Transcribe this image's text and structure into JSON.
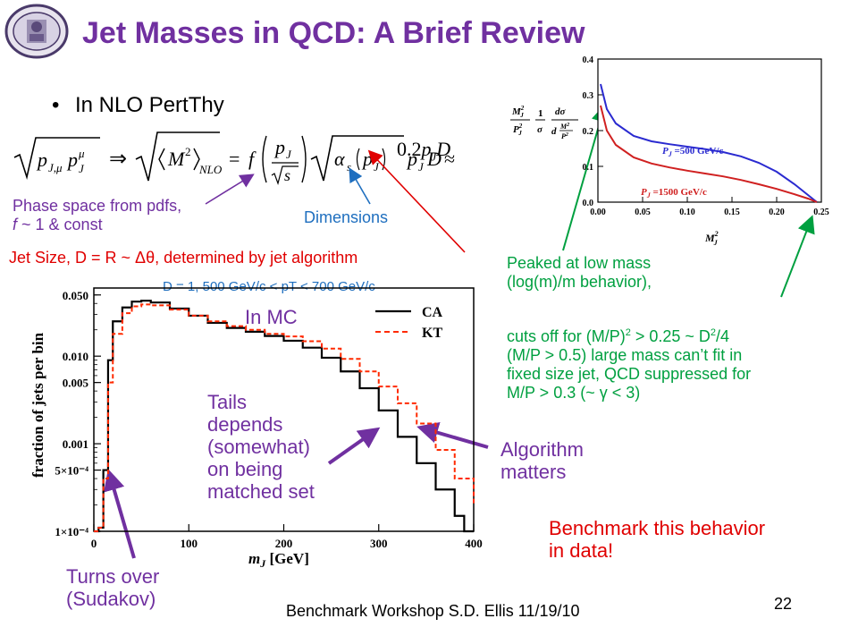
{
  "title": "Jet Masses in QCD:  A Brief Review",
  "bullet": "In NLO PertThy",
  "equation": {
    "lhs": "p",
    "lhs_sub": "J,μ",
    "lhs2": "p",
    "lhs2_sup": "μ",
    "lhs2_sub": "J",
    "implies": "⇒",
    "mass_term": "M",
    "mass_sup": "2",
    "mass_sub": "NLO",
    "eq": "=",
    "f": "f",
    "frac_num": "p",
    "frac_num_sub": "J",
    "frac_den": "s",
    "alpha": "α",
    "alpha_sub": "s",
    "arg": "p",
    "arg_sub": "J",
    "tail": "p",
    "tail_sub": "J",
    "D": "D",
    "approx": "≈",
    "coef": "0.2",
    "p2": "p",
    "p2_sub": "J",
    "D2": "D"
  },
  "annotations": {
    "phase_space_1": "Phase space from pdfs,",
    "phase_space_2": "f ~ 1 & const",
    "dimensions": "Dimensions",
    "jet_size": "Jet Size, D = R ~ Δθ, determined by jet algorithm",
    "selection": "D = 1, 500 GeV/c < pT < 700 GeV/c",
    "in_mc": "In MC",
    "tails_1": "Tails",
    "tails_2": "depends",
    "tails_3": "(somewhat)",
    "tails_4": "on being",
    "tails_5": "matched set",
    "algorithm_1": "Algorithm",
    "algorithm_2": "matters",
    "turns_1": "Turns over",
    "turns_2": "(Sudakov)",
    "benchmark_1": "Benchmark this behavior",
    "benchmark_2": "in data!",
    "peaked_1": "Peaked at low mass",
    "peaked_2": "(log(m)/m behavior),",
    "cuts_1": "cuts off for (M/P)",
    "cuts_1_sup": "2",
    "cuts_1_b": " > 0.25 ~ D",
    "cuts_1_sup2": "2",
    "cuts_1_c": "/4",
    "cuts_2": "(M/P > 0.5) large mass can’t fit in",
    "cuts_3": "fixed size jet, QCD suppressed for",
    "cuts_4": "M/P > 0.3 (~  γ < 3)"
  },
  "footer": "Benchmark Workshop    S.D. Ellis  11/19/10",
  "page_number": "22",
  "colors": {
    "title": "#7030a0",
    "blue_arrow": "#1f6fbf",
    "red_text": "#e00000",
    "green_text": "#00a040",
    "curve_500": "#2a2ad0",
    "curve_1500": "#d02020"
  },
  "chart_data": [
    {
      "type": "line",
      "xlabel": "m_J [GeV]",
      "ylabel": "fraction of jets per bin",
      "xlim": [
        0,
        400
      ],
      "ylim": [
        0.0001,
        0.06
      ],
      "yscale": "log",
      "x_ticks": [
        "0",
        "100",
        "200",
        "300",
        "400"
      ],
      "y_ticks": [
        "0.050",
        "0.010",
        "0.005",
        "0.001",
        "5×10⁻⁴",
        "1×10⁻⁴"
      ],
      "legend_position": "top-right",
      "series": [
        {
          "name": "CA",
          "style": "solid-black",
          "x": [
            0,
            5,
            10,
            15,
            20,
            30,
            40,
            50,
            60,
            80,
            100,
            120,
            140,
            160,
            180,
            200,
            220,
            240,
            260,
            280,
            300,
            320,
            340,
            360,
            380,
            390,
            400
          ],
          "y": [
            0.0001,
            0.00011,
            0.0005,
            0.009,
            0.025,
            0.036,
            0.042,
            0.043,
            0.041,
            0.035,
            0.029,
            0.024,
            0.021,
            0.019,
            0.017,
            0.015,
            0.0125,
            0.0096,
            0.0067,
            0.0043,
            0.0024,
            0.0012,
            0.0006,
            0.0003,
            0.00015,
            0.0001,
            0.0001
          ]
        },
        {
          "name": "KT",
          "style": "dashed-red",
          "x": [
            0,
            5,
            10,
            15,
            20,
            30,
            40,
            50,
            60,
            80,
            100,
            120,
            140,
            160,
            180,
            200,
            220,
            240,
            260,
            280,
            300,
            320,
            340,
            360,
            380,
            400
          ],
          "y": [
            0.0001,
            0.00011,
            0.0004,
            0.005,
            0.018,
            0.031,
            0.037,
            0.039,
            0.038,
            0.034,
            0.029,
            0.025,
            0.022,
            0.02,
            0.018,
            0.0168,
            0.0148,
            0.0122,
            0.0093,
            0.0067,
            0.0045,
            0.0029,
            0.0017,
            0.00085,
            0.0004,
            0.0002
          ]
        }
      ]
    },
    {
      "type": "line",
      "xlabel": "M_J^2 / P_J^2",
      "ylabel": "(M_J^2/P_J^2)(1/σ) dσ/d(M_J^2/P_J^2)",
      "xlim": [
        0,
        0.25
      ],
      "ylim": [
        0,
        0.4
      ],
      "x_ticks": [
        "0.00",
        "0.05",
        "0.10",
        "0.15",
        "0.20",
        "0.25"
      ],
      "y_ticks": [
        "0.0",
        "0.1",
        "0.2",
        "0.3",
        "0.4"
      ],
      "series": [
        {
          "name": "P_J = 500 GeV/c",
          "color": "#2a2ad0",
          "x": [
            0.003,
            0.01,
            0.02,
            0.04,
            0.06,
            0.08,
            0.1,
            0.12,
            0.14,
            0.16,
            0.18,
            0.2,
            0.22,
            0.235,
            0.245
          ],
          "y": [
            0.33,
            0.26,
            0.22,
            0.185,
            0.17,
            0.162,
            0.155,
            0.148,
            0.14,
            0.128,
            0.11,
            0.085,
            0.05,
            0.02,
            0.0
          ]
        },
        {
          "name": "P_J = 1500 GeV/c",
          "color": "#d02020",
          "x": [
            0.003,
            0.01,
            0.02,
            0.04,
            0.06,
            0.08,
            0.1,
            0.12,
            0.14,
            0.16,
            0.18,
            0.2,
            0.22,
            0.235,
            0.245
          ],
          "y": [
            0.27,
            0.2,
            0.16,
            0.125,
            0.108,
            0.097,
            0.088,
            0.08,
            0.072,
            0.062,
            0.05,
            0.037,
            0.022,
            0.01,
            0.0
          ]
        }
      ]
    }
  ],
  "chart_labels": {
    "ca": "CA",
    "kt": "KT",
    "pj500": "P",
    "pj500_sub": "J",
    "pj500_val": " =500 GeV/c",
    "pj1500": "P",
    "pj1500_sub": "J",
    "pj1500_val": " =1500 GeV/c",
    "xlab_left": "m",
    "xlab_left_sub": "J",
    "xlab_left_unit": " [GeV]",
    "ylab_left": "fraction of jets per bin",
    "xlab_right": "M",
    "xlab_right_sup": "2",
    "xlab_right_sub": "J",
    "ylab_right_a": "M",
    "ylab_right_b": "P",
    "ylab_right_1": "1",
    "ylab_right_sigma": "σ",
    "ylab_right_ds": "dσ",
    "ylab_right_d": "d"
  }
}
